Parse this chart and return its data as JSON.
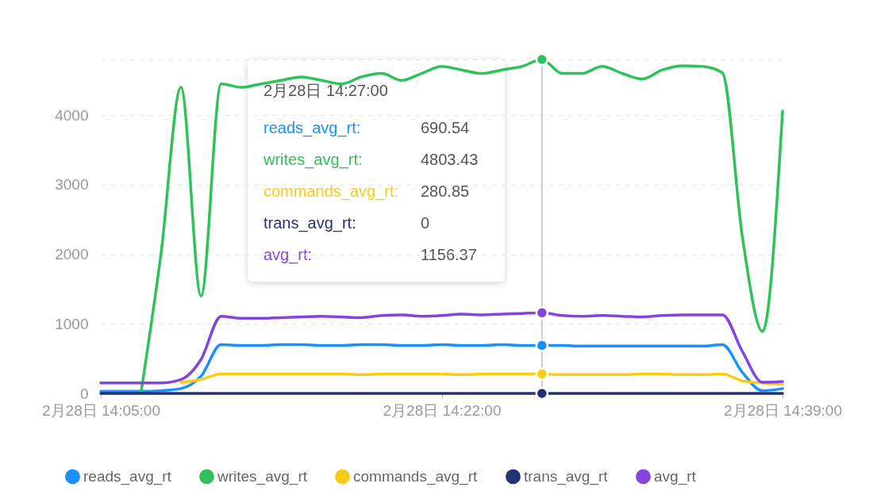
{
  "chart_data": {
    "type": "line",
    "x": [
      "--02-28T14:05",
      "--02-28T14:06",
      "--02-28T14:07",
      "--02-28T14:08",
      "--02-28T14:09",
      "--02-28T14:10",
      "--02-28T14:11",
      "--02-28T14:12",
      "--02-28T14:13",
      "--02-28T14:14",
      "--02-28T14:15",
      "--02-28T14:16",
      "--02-28T14:17",
      "--02-28T14:18",
      "--02-28T14:19",
      "--02-28T14:20",
      "--02-28T14:21",
      "--02-28T14:22",
      "--02-28T14:23",
      "--02-28T14:24",
      "--02-28T14:25",
      "--02-28T14:26",
      "--02-28T14:27",
      "--02-28T14:28",
      "--02-28T14:29",
      "--02-28T14:30",
      "--02-28T14:31",
      "--02-28T14:32",
      "--02-28T14:33",
      "--02-28T14:34",
      "--02-28T14:35",
      "--02-28T14:36",
      "--02-28T14:37",
      "--02-28T14:38",
      "--02-28T14:39"
    ],
    "series": [
      {
        "name": "reads_avg_rt",
        "color": "#1890ff",
        "values": [
          30,
          30,
          30,
          40,
          70,
          250,
          700,
          690,
          690,
          700,
          700,
          690,
          690,
          700,
          700,
          690,
          690,
          700,
          690,
          690,
          700,
          690,
          690,
          690,
          680,
          680,
          680,
          680,
          680,
          680,
          680,
          700,
          300,
          40,
          70
        ]
      },
      {
        "name": "writes_avg_rt",
        "color": "#2fc25b",
        "values": [
          null,
          null,
          0,
          2000,
          4400,
          1400,
          4450,
          4400,
          4450,
          4500,
          4550,
          4500,
          4450,
          4550,
          4600,
          4500,
          4600,
          4700,
          4650,
          4600,
          4650,
          4700,
          4800,
          4600,
          4600,
          4700,
          4600,
          4520,
          4650,
          4710,
          4700,
          4610,
          2240,
          890,
          4060
        ]
      },
      {
        "name": "commands_avg_rt",
        "color": "#facc14",
        "values": [
          null,
          null,
          null,
          null,
          160,
          200,
          280,
          280,
          280,
          280,
          280,
          280,
          280,
          270,
          280,
          280,
          280,
          280,
          270,
          280,
          280,
          280,
          280,
          270,
          270,
          270,
          270,
          280,
          280,
          270,
          270,
          280,
          180,
          150,
          130
        ]
      },
      {
        "name": "trans_avg_rt",
        "color": "#223273",
        "values": [
          0,
          0,
          0,
          0,
          0,
          0,
          0,
          0,
          0,
          0,
          0,
          0,
          0,
          0,
          0,
          0,
          0,
          0,
          0,
          0,
          0,
          0,
          0,
          0,
          0,
          0,
          0,
          0,
          0,
          0,
          0,
          0,
          0,
          0,
          0
        ]
      },
      {
        "name": "avg_rt",
        "color": "#8543e0",
        "values": [
          150,
          150,
          150,
          150,
          200,
          490,
          1110,
          1080,
          1080,
          1090,
          1100,
          1110,
          1100,
          1090,
          1120,
          1130,
          1110,
          1120,
          1140,
          1130,
          1140,
          1150,
          1160,
          1120,
          1110,
          1120,
          1110,
          1100,
          1120,
          1130,
          1130,
          1130,
          600,
          160,
          170
        ]
      }
    ],
    "ylim": [
      0,
      4800
    ],
    "yticks": [
      0,
      1000,
      2000,
      3000,
      4000,
      {
        "value": 4800,
        "label": null
      }
    ],
    "xlim": [
      "--02-28T14:05",
      "--02-28T14:39"
    ],
    "xticks": [
      {
        "value": "--02-28T14:05",
        "label": "2月28日 14:05:00"
      },
      {
        "value": "--02-28T14:22",
        "label": "2月28日 14:22:00"
      },
      {
        "value": "--02-28T14:39",
        "label": "2月28日 14:39:00"
      }
    ],
    "grid": "y",
    "legend": "bottom",
    "ref_lines": [
      {
        "axis": "x",
        "value": "--02-28T14:27",
        "color": "#cccccc"
      }
    ],
    "annotations": [
      "2月28日 14:27:00",
      "reads_avg_rt:",
      "690.54",
      "writes_avg_rt:",
      "4803.43",
      "commands_avg_rt:",
      "280.85",
      "trans_avg_rt:",
      "0",
      "avg_rt:",
      "1156.37"
    ]
  }
}
